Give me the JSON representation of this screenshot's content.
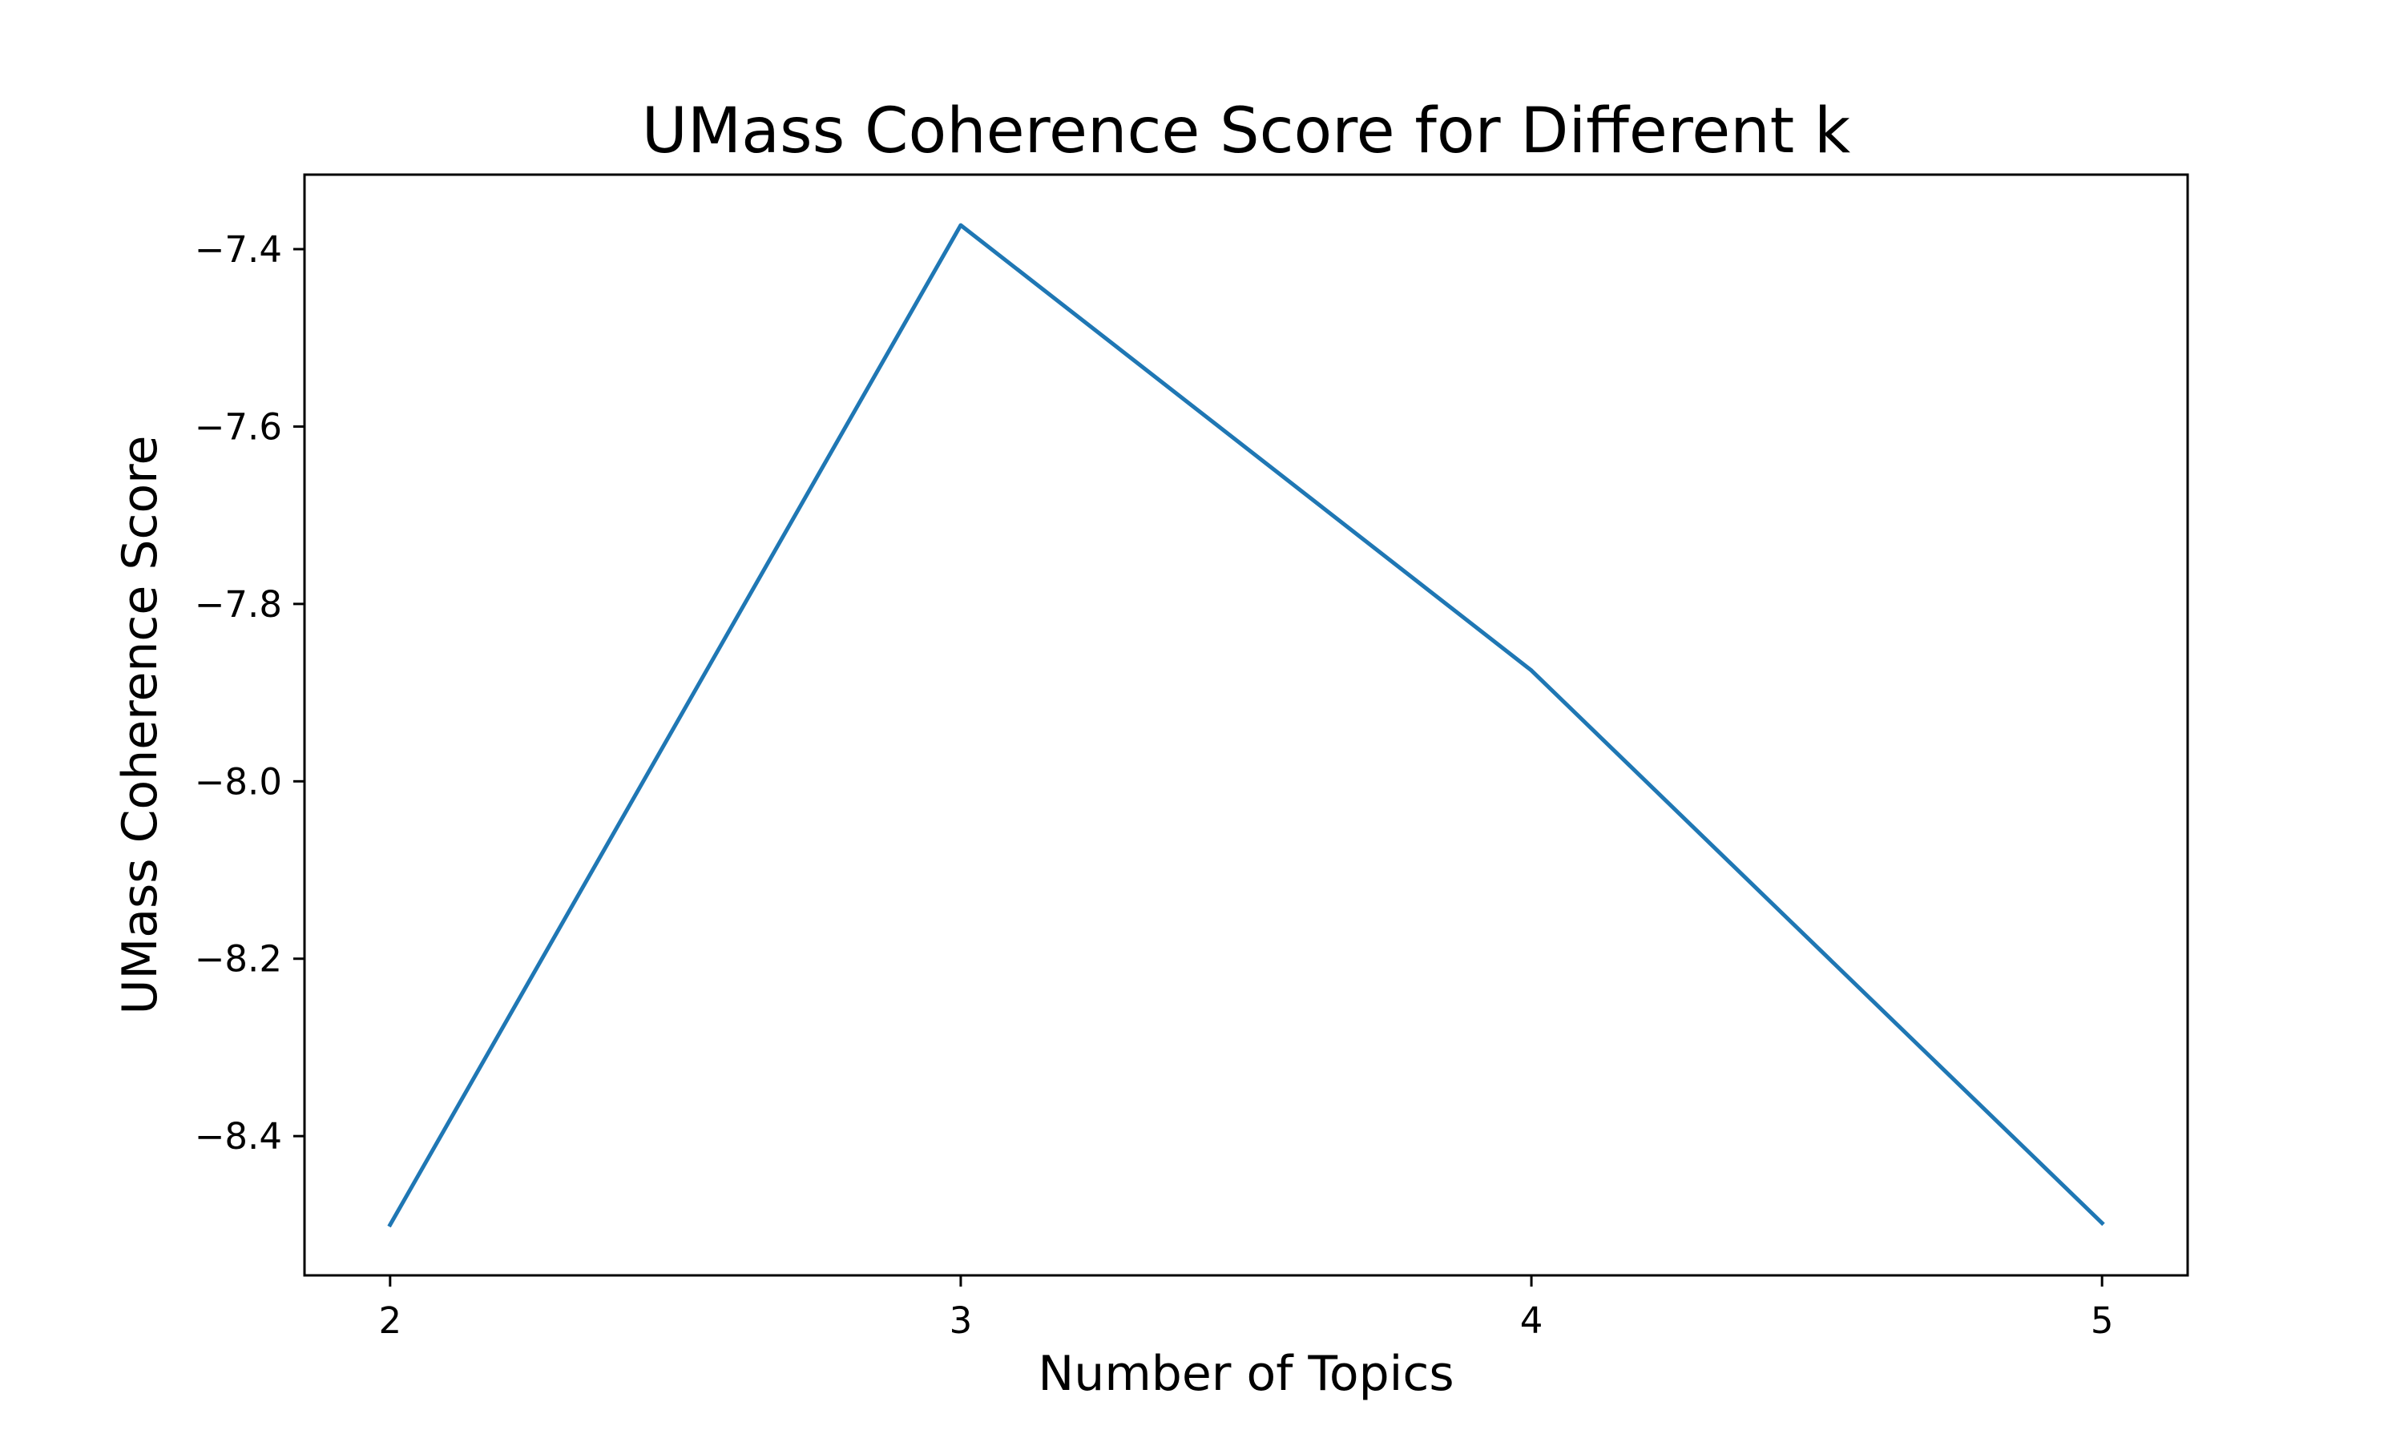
{
  "chart_data": {
    "type": "line",
    "title": "UMass Coherence Score for Different k",
    "xlabel": "Number of Topics",
    "ylabel": "UMass Coherence Score",
    "x": [
      2,
      3,
      4,
      5
    ],
    "y": [
      -8.5,
      -7.373,
      -7.875,
      -8.498
    ],
    "xticks": [
      2,
      3,
      4,
      5
    ],
    "xtick_labels": [
      "2",
      "3",
      "4",
      "5"
    ],
    "yticks": [
      -7.4,
      -7.6,
      -7.8,
      -8.0,
      -8.2,
      -8.4
    ],
    "ytick_labels": [
      "−7.4",
      "−7.6",
      "−7.8",
      "−8.0",
      "−8.2",
      "−8.4"
    ],
    "xlim": [
      1.85,
      5.15
    ],
    "ylim": [
      -8.557,
      -7.316
    ],
    "grid": false,
    "legend": false,
    "colors": {
      "line": "#1f77b4",
      "axes": "#000000",
      "background": "#ffffff"
    }
  }
}
